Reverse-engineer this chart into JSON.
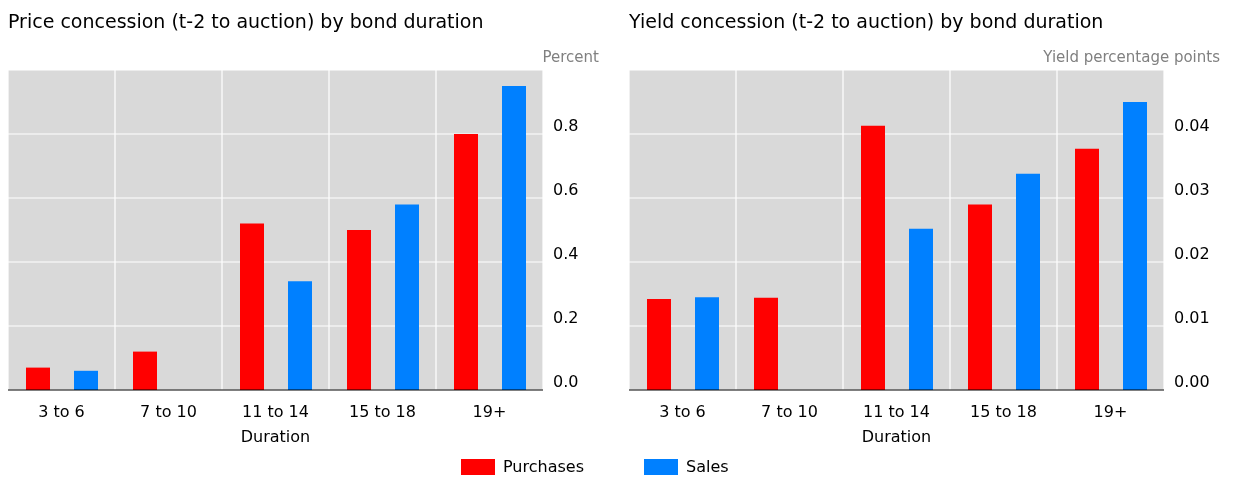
{
  "chart_data": [
    {
      "type": "bar",
      "title": "Price concession (t-2 to auction) by bond duration",
      "ylabel": "Percent",
      "xlabel": "Duration",
      "categories": [
        "3  to 6",
        "7 to 10",
        "11 to 14",
        "15 to 18",
        "19+"
      ],
      "series": [
        {
          "name": "Purchases",
          "color": "#ff0000",
          "values": [
            0.07,
            0.12,
            0.52,
            0.5,
            0.8
          ]
        },
        {
          "name": "Sales",
          "color": "#0080ff",
          "values": [
            0.06,
            null,
            0.34,
            0.58,
            0.95
          ]
        }
      ],
      "ylim": [
        0,
        1
      ],
      "yticks": [
        {
          "value": 0,
          "label": "0.0"
        },
        {
          "value": 0.2,
          "label": "0.2"
        },
        {
          "value": 0.4,
          "label": "0.4"
        },
        {
          "value": 0.6,
          "label": "0.6"
        },
        {
          "value": 0.8,
          "label": "0.8"
        }
      ],
      "grid": true,
      "legend": "bottom"
    },
    {
      "type": "bar",
      "title": "Yield concession (t-2 to auction) by bond duration",
      "ylabel": "Yield percentage points",
      "xlabel": "Duration",
      "categories": [
        "3  to 6",
        "7 to 10",
        "11 to 14",
        "15 to 18",
        "19+"
      ],
      "series": [
        {
          "color": "#ff0000",
          "values": [
            0.0142,
            0.0144,
            0.0413,
            0.029,
            0.0377
          ]
        },
        {
          "color": "#0080ff",
          "values": [
            0.0145,
            null,
            0.0252,
            0.0338,
            0.045
          ]
        }
      ],
      "ylim": [
        0,
        0.05
      ],
      "yticks": [
        {
          "value": 0,
          "label": "0.00"
        },
        {
          "value": 0.01,
          "label": "0.01"
        },
        {
          "value": 0.02,
          "label": "0.02"
        },
        {
          "value": 0.03,
          "label": "0.03"
        },
        {
          "value": 0.04,
          "label": "0.04"
        }
      ],
      "grid": true
    }
  ]
}
